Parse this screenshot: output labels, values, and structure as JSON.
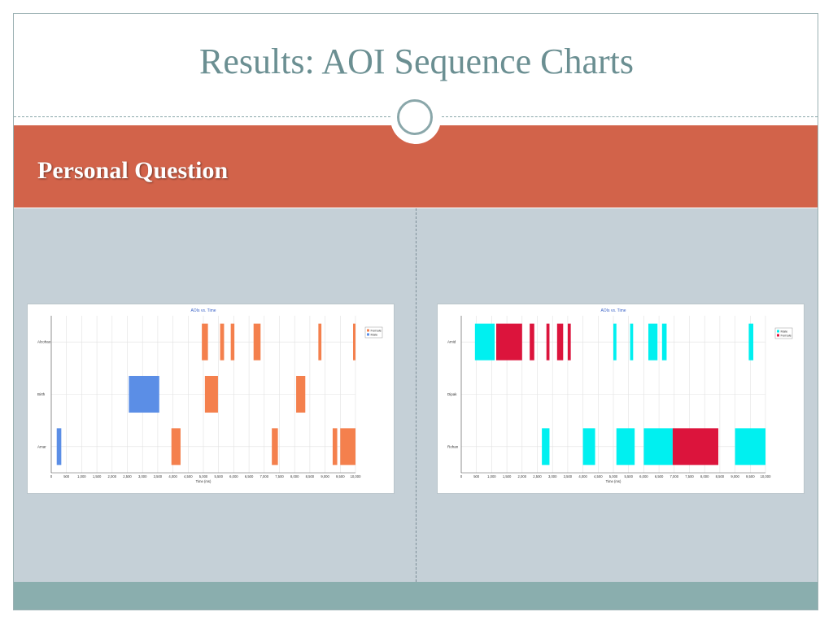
{
  "slide": {
    "title": "Results: AOI Sequence Charts",
    "subtitle": "Personal Question",
    "colors": {
      "banner": "#d2634a",
      "content": "#c5d0d7",
      "footer": "#8aaeae",
      "title": "#6b8f92"
    }
  },
  "chart_data": [
    {
      "type": "bar",
      "title": "AOIs vs. Time",
      "xlabel": "Time (ms)",
      "ylabel": "",
      "xlim": [
        0,
        10000
      ],
      "xticks": [
        0,
        500,
        1000,
        1500,
        2000,
        2500,
        3000,
        3500,
        4000,
        4500,
        5000,
        5500,
        6000,
        6500,
        7000,
        7500,
        8000,
        8500,
        9000,
        9500,
        10000
      ],
      "xtick_labels": [
        "0",
        "500",
        "1,000",
        "1,500",
        "2,000",
        "2,500",
        "3,000",
        "3,500",
        "4,000",
        "4,500",
        "5,000",
        "5,500",
        "6,000",
        "6,500",
        "7,000",
        "7,500",
        "8,000",
        "8,500",
        "9,000",
        "9,500",
        "10,000"
      ],
      "categories": [
        "Alcohao",
        "Birth",
        "Amar"
      ],
      "legend": {
        "position": "top-right",
        "entries": [
          {
            "name": "Female",
            "color": "#f4804d"
          },
          {
            "name": "Male",
            "color": "#5b8ee6"
          }
        ]
      },
      "grid": true,
      "series": [
        {
          "name": "Female",
          "color": "#f4804d",
          "segments": [
            {
              "row": "Alcohao",
              "start": 4950,
              "end": 5150
            },
            {
              "row": "Alcohao",
              "start": 5550,
              "end": 5680
            },
            {
              "row": "Alcohao",
              "start": 5900,
              "end": 6020
            },
            {
              "row": "Alcohao",
              "start": 6650,
              "end": 6880
            },
            {
              "row": "Alcohao",
              "start": 8780,
              "end": 8880
            },
            {
              "row": "Alcohao",
              "start": 9920,
              "end": 10000
            },
            {
              "row": "Birth",
              "start": 5050,
              "end": 5480
            },
            {
              "row": "Birth",
              "start": 8050,
              "end": 8350
            },
            {
              "row": "Amar",
              "start": 3950,
              "end": 4250
            },
            {
              "row": "Amar",
              "start": 7250,
              "end": 7450
            },
            {
              "row": "Amar",
              "start": 9250,
              "end": 9400
            },
            {
              "row": "Amar",
              "start": 9500,
              "end": 10000
            }
          ]
        },
        {
          "name": "Male",
          "color": "#5b8ee6",
          "segments": [
            {
              "row": "Birth",
              "start": 2550,
              "end": 3550
            },
            {
              "row": "Amar",
              "start": 180,
              "end": 330
            }
          ]
        }
      ]
    },
    {
      "type": "bar",
      "title": "AOIs vs. Time",
      "xlabel": "Time (ms)",
      "ylabel": "",
      "xlim": [
        0,
        10000
      ],
      "xticks": [
        0,
        500,
        1000,
        1500,
        2000,
        2500,
        3000,
        3500,
        4000,
        4500,
        5000,
        5500,
        6000,
        6500,
        7000,
        7500,
        8000,
        8500,
        9000,
        9500,
        10000
      ],
      "xtick_labels": [
        "0",
        "500",
        "1,000",
        "1,500",
        "2,000",
        "2,500",
        "3,000",
        "3,500",
        "4,000",
        "4,500",
        "5,000",
        "5,500",
        "6,000",
        "6,500",
        "7,000",
        "7,500",
        "8,000",
        "8,500",
        "9,000",
        "9,500",
        "10,000"
      ],
      "categories": [
        "Amid",
        "Dipak",
        "Rohan"
      ],
      "legend": {
        "position": "top-right",
        "entries": [
          {
            "name": "Male",
            "color": "#00f0f0"
          },
          {
            "name": "Female",
            "color": "#dc143c"
          }
        ]
      },
      "grid": true,
      "series": [
        {
          "name": "Male",
          "color": "#00f0f0",
          "segments": [
            {
              "row": "Amid",
              "start": 450,
              "end": 1100
            },
            {
              "row": "Amid",
              "start": 5000,
              "end": 5100
            },
            {
              "row": "Amid",
              "start": 5550,
              "end": 5650
            },
            {
              "row": "Amid",
              "start": 6150,
              "end": 6450
            },
            {
              "row": "Amid",
              "start": 6600,
              "end": 6750
            },
            {
              "row": "Amid",
              "start": 9450,
              "end": 9600
            },
            {
              "row": "Rohan",
              "start": 2650,
              "end": 2900
            },
            {
              "row": "Rohan",
              "start": 4000,
              "end": 4400
            },
            {
              "row": "Rohan",
              "start": 5100,
              "end": 5700
            },
            {
              "row": "Rohan",
              "start": 6000,
              "end": 6950
            },
            {
              "row": "Rohan",
              "start": 9000,
              "end": 10000
            }
          ]
        },
        {
          "name": "Female",
          "color": "#dc143c",
          "segments": [
            {
              "row": "Amid",
              "start": 1150,
              "end": 2000
            },
            {
              "row": "Amid",
              "start": 2250,
              "end": 2400
            },
            {
              "row": "Amid",
              "start": 2800,
              "end": 2900
            },
            {
              "row": "Amid",
              "start": 3150,
              "end": 3350
            },
            {
              "row": "Amid",
              "start": 3500,
              "end": 3600
            },
            {
              "row": "Rohan",
              "start": 6950,
              "end": 8450
            }
          ]
        }
      ]
    }
  ]
}
